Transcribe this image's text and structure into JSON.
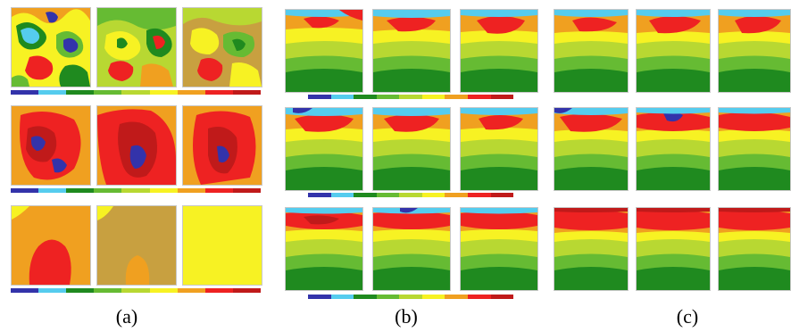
{
  "captions": {
    "a": "(a)",
    "b": "(b)",
    "c": "(c)"
  },
  "colors": {
    "darkgreen": "#1f8a1f",
    "green": "#66bb33",
    "yellowgreen": "#b8d832",
    "yellow": "#f7f223",
    "orange": "#f0a020",
    "red": "#ee2222",
    "darkred": "#c01a1a",
    "blue": "#3333aa",
    "cyan": "#55ccee",
    "tan": "#c8a040",
    "lightorange": "#f5b041"
  }
}
